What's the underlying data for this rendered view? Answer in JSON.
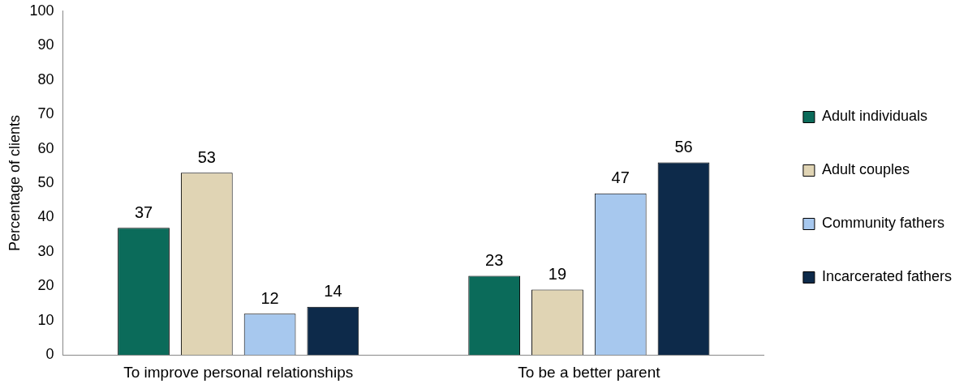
{
  "chart_data": {
    "type": "bar",
    "ylabel": "Percentage of clients",
    "categories": [
      "To improve personal relationships",
      "To be a better parent"
    ],
    "series": [
      {
        "name": "Adult individuals",
        "color": "#0b6b5a",
        "values": [
          37,
          23
        ]
      },
      {
        "name": "Adult couples",
        "color": "#e0d4b4",
        "values": [
          53,
          19
        ]
      },
      {
        "name": "Community fathers",
        "color": "#a7c8ee",
        "values": [
          12,
          47
        ]
      },
      {
        "name": "Incarcerated fathers",
        "color": "#0d2a4a",
        "values": [
          14,
          56
        ]
      }
    ],
    "ylim": [
      0,
      100
    ],
    "yticks": [
      0,
      10,
      20,
      30,
      40,
      50,
      60,
      70,
      80,
      90,
      100
    ],
    "grid": false,
    "legend": "right",
    "data_labels": true
  }
}
